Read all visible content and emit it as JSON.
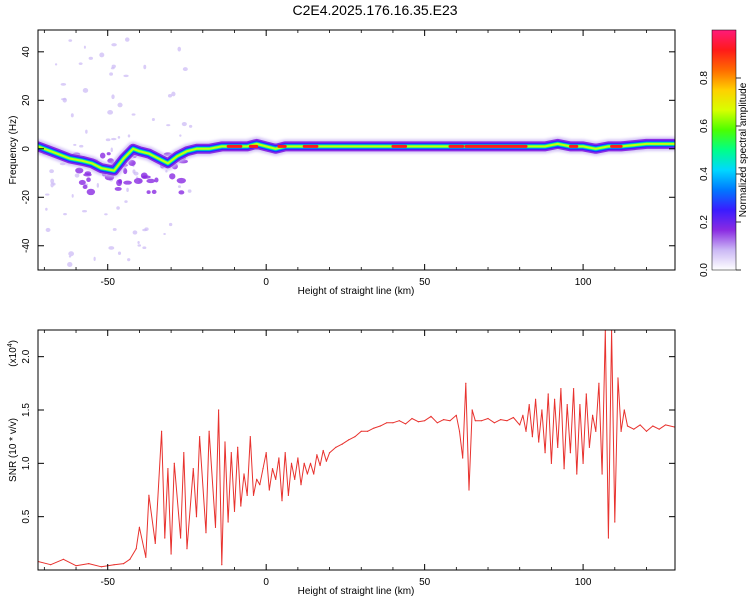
{
  "title": "C2E4.2025.176.16.35.E23",
  "chart_data": [
    {
      "type": "heatmap",
      "xlabel": "Height of straight line (km)",
      "ylabel": "Frequency (Hz)",
      "xlim": [
        -72,
        129
      ],
      "ylim": [
        -50,
        49
      ],
      "xticks": [
        -50,
        0,
        50,
        100
      ],
      "yticks": [
        -40,
        -20,
        0,
        20,
        40
      ],
      "tick_labels_x": [
        "-50",
        "0",
        "50",
        "100"
      ],
      "tick_labels_y": [
        "-40",
        "-20",
        "0",
        "20",
        "40"
      ],
      "ridge": {
        "x": [
          -72,
          -66,
          -62,
          -58,
          -55,
          -52,
          -48,
          -45,
          -42,
          -40,
          -37,
          -34,
          -31,
          -28,
          -25,
          -22,
          -18,
          -14,
          -10,
          -6,
          -3,
          0,
          3,
          6,
          10,
          15,
          20,
          30,
          40,
          50,
          60,
          70,
          80,
          88,
          92,
          96,
          100,
          104,
          108,
          112,
          120,
          129
        ],
        "y": [
          1,
          -2,
          -4,
          -5,
          -6,
          -8,
          -9,
          -4,
          0,
          -1,
          -2,
          -4,
          -6,
          -3,
          -1,
          0,
          0,
          1,
          1,
          1,
          2,
          1,
          0,
          1,
          1,
          1,
          1,
          1,
          1,
          1,
          1,
          1,
          1,
          1,
          2,
          1,
          1,
          0,
          1,
          1,
          2,
          2
        ]
      },
      "colorbar": {
        "label": "Normalized spectral amplitude",
        "range": [
          0.0,
          1.0
        ],
        "ticks": [
          0.0,
          0.2,
          0.4,
          0.6,
          0.8
        ],
        "tick_labels": [
          "0.0",
          "0.2",
          "0.4",
          "0.6",
          "0.8"
        ],
        "colors": [
          "#ffffff",
          "#cbb8f5",
          "#8a2be2",
          "#3a1cff",
          "#0078ff",
          "#00d8ff",
          "#00ff88",
          "#4cff00",
          "#d8ff00",
          "#ffd000",
          "#ff6a00",
          "#ff1a1a",
          "#ff1a7a"
        ]
      }
    },
    {
      "type": "line",
      "xlabel": "Height of straight line (km)",
      "ylabel": "SNR (10 * v/v)",
      "scale_note": "(x10",
      "scale_exp": "4",
      "xlim": [
        -72,
        129
      ],
      "ylim": [
        0.0,
        2.25
      ],
      "xticks": [
        -50,
        0,
        50,
        100
      ],
      "yticks": [
        0.5,
        1.0,
        1.5,
        2.0
      ],
      "tick_labels_x": [
        "-50",
        "0",
        "50",
        "100"
      ],
      "tick_labels_y": [
        "0.5",
        "1.0",
        "1.5",
        "2.0"
      ],
      "color": "#e8322e",
      "x": [
        -72,
        -68,
        -64,
        -60,
        -56,
        -52,
        -48,
        -45,
        -43,
        -41,
        -40,
        -38,
        -37,
        -35,
        -33,
        -32,
        -31,
        -30,
        -29,
        -27,
        -26,
        -25,
        -23,
        -22,
        -21,
        -19,
        -18,
        -16,
        -15,
        -14,
        -13,
        -12,
        -11,
        -10,
        -9,
        -8,
        -7,
        -6,
        -5,
        -4,
        -3,
        -2,
        -1,
        0,
        1,
        2,
        3,
        4,
        5,
        6,
        7,
        8,
        9,
        10,
        11,
        12,
        13,
        14,
        15,
        16,
        17,
        18,
        19,
        20,
        22,
        24,
        26,
        28,
        30,
        32,
        34,
        36,
        38,
        40,
        42,
        44,
        46,
        48,
        50,
        52,
        54,
        56,
        58,
        60,
        61,
        62,
        63,
        64,
        65,
        66,
        68,
        70,
        72,
        74,
        76,
        78,
        80,
        81,
        82,
        83,
        84,
        85,
        86,
        87,
        88,
        89,
        90,
        91,
        92,
        93,
        94,
        95,
        96,
        97,
        98,
        99,
        100,
        101,
        102,
        103,
        104,
        105,
        106,
        107,
        108,
        109,
        110,
        111,
        112,
        113,
        114,
        116,
        118,
        120,
        122,
        124,
        126,
        129
      ],
      "y": [
        0.08,
        0.05,
        0.1,
        0.04,
        0.06,
        0.03,
        0.05,
        0.06,
        0.1,
        0.2,
        0.4,
        0.12,
        0.7,
        0.25,
        1.3,
        0.3,
        0.95,
        0.15,
        1.0,
        0.3,
        1.1,
        0.2,
        0.95,
        0.5,
        1.25,
        0.35,
        1.3,
        0.4,
        1.5,
        0.05,
        1.2,
        0.45,
        1.1,
        0.55,
        1.15,
        0.6,
        0.9,
        0.7,
        1.25,
        0.7,
        0.85,
        0.8,
        0.95,
        1.1,
        0.75,
        0.95,
        0.85,
        1.05,
        0.65,
        1.1,
        0.7,
        1.0,
        0.85,
        1.05,
        0.8,
        1.0,
        0.9,
        1.0,
        0.9,
        1.08,
        0.98,
        1.12,
        1.02,
        1.1,
        1.15,
        1.18,
        1.22,
        1.25,
        1.3,
        1.3,
        1.33,
        1.35,
        1.38,
        1.38,
        1.4,
        1.37,
        1.42,
        1.39,
        1.4,
        1.44,
        1.38,
        1.41,
        1.4,
        1.45,
        1.3,
        1.05,
        1.75,
        0.75,
        1.5,
        1.4,
        1.4,
        1.42,
        1.38,
        1.41,
        1.4,
        1.43,
        1.36,
        1.45,
        1.3,
        1.55,
        1.25,
        1.6,
        1.2,
        1.5,
        1.1,
        1.65,
        1.0,
        1.6,
        1.15,
        1.7,
        0.95,
        1.55,
        1.1,
        1.7,
        0.9,
        1.55,
        1.0,
        1.65,
        1.15,
        1.45,
        1.3,
        1.75,
        0.9,
        2.25,
        0.3,
        2.25,
        0.45,
        1.8,
        1.3,
        1.5,
        1.35,
        1.32,
        1.36,
        1.3,
        1.35,
        1.32,
        1.36,
        1.34
      ]
    }
  ]
}
